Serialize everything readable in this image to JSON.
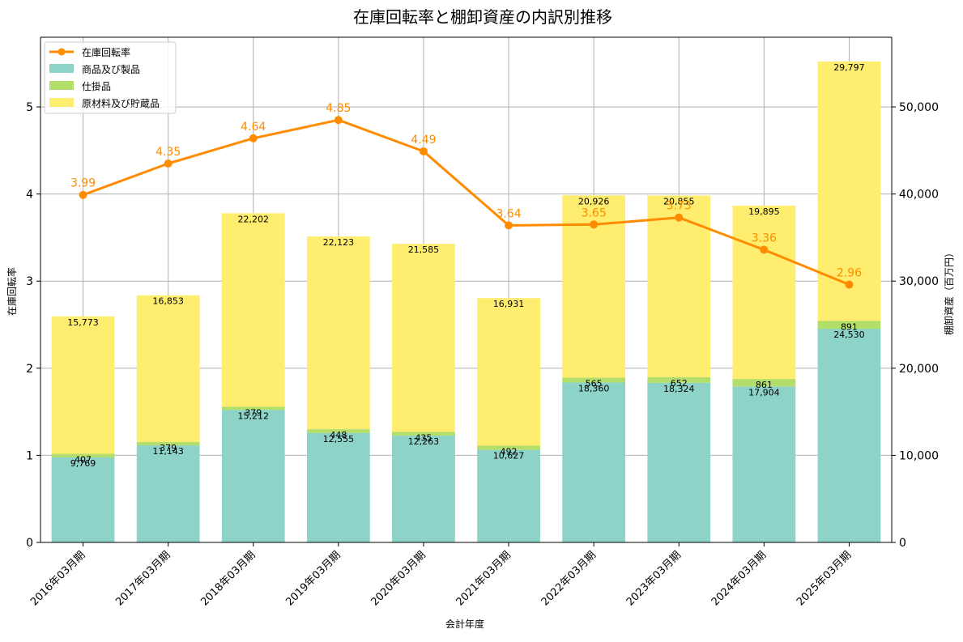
{
  "chart_data": {
    "type": "bar",
    "title": "在庫回転率と棚卸資産の内訳別推移",
    "xlabel": "会計年度",
    "ylabel_left": "在庫回転率",
    "ylabel_right": "棚卸資産（百万円）",
    "categories": [
      "2016年03月期",
      "2017年03月期",
      "2018年03月期",
      "2019年03月期",
      "2020年03月期",
      "2021年03月期",
      "2022年03月期",
      "2023年03月期",
      "2024年03月期",
      "2025年03月期"
    ],
    "ylim_left": [
      0,
      5.8
    ],
    "ylim_right": [
      0,
      58000
    ],
    "yticks_left": [
      "0",
      "1",
      "2",
      "3",
      "4",
      "5"
    ],
    "yticks_right": [
      "0",
      "10,000",
      "20,000",
      "30,000",
      "40,000",
      "50,000"
    ],
    "grid": true,
    "legend_position": "top-left",
    "series": [
      {
        "name": "商品及び製品",
        "kind": "bar",
        "axis": "right",
        "color": "#8dd3c7",
        "values": [
          9769,
          11143,
          15212,
          12555,
          12263,
          10627,
          18360,
          18324,
          17904,
          24530
        ],
        "labels": [
          "9,769",
          "11,143",
          "15,212",
          "12,555",
          "12,263",
          "10,627",
          "18,360",
          "18,324",
          "17,904",
          "24,530"
        ]
      },
      {
        "name": "仕掛品",
        "kind": "bar",
        "axis": "right",
        "color": "#b3de69",
        "values": [
          407,
          379,
          379,
          448,
          435,
          492,
          565,
          652,
          861,
          891
        ],
        "labels": [
          "407",
          "379",
          "379",
          "448",
          "435",
          "492",
          "565",
          "652",
          "861",
          "891"
        ]
      },
      {
        "name": "原材料及び貯蔵品",
        "kind": "bar",
        "axis": "right",
        "color": "#ffed6f",
        "values": [
          15773,
          16853,
          22202,
          22123,
          21585,
          16931,
          20926,
          20855,
          19895,
          29797
        ],
        "labels": [
          "15,773",
          "16,853",
          "22,202",
          "22,123",
          "21,585",
          "16,931",
          "20,926",
          "20,855",
          "19,895",
          "29,797"
        ]
      },
      {
        "name": "在庫回転率",
        "kind": "line",
        "axis": "left",
        "color": "#ff8c00",
        "values": [
          3.99,
          4.35,
          4.64,
          4.85,
          4.49,
          3.64,
          3.65,
          3.73,
          3.36,
          2.96
        ],
        "labels": [
          "3.99",
          "4.35",
          "4.64",
          "4.85",
          "4.49",
          "3.64",
          "3.65",
          "3.73",
          "3.36",
          "2.96"
        ]
      }
    ],
    "legend_order": [
      "在庫回転率",
      "商品及び製品",
      "仕掛品",
      "原材料及び貯蔵品"
    ]
  }
}
